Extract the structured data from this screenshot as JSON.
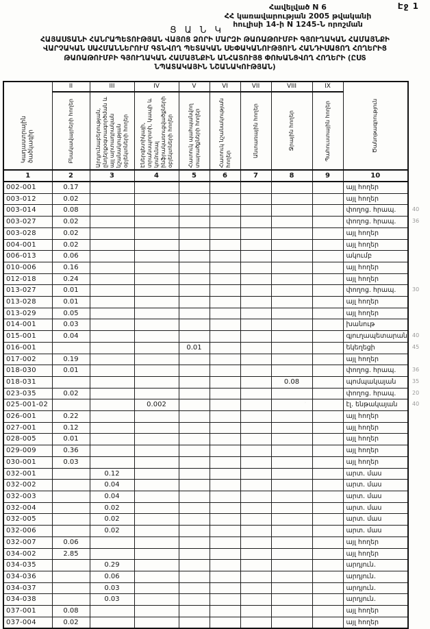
{
  "page": {
    "page_label": "Էջ 1",
    "appendix_line1": "Հավելված N 6",
    "appendix_line2": "ՀՀ կառավարության 2005 թվականի",
    "appendix_line3": "հուլիսի 14-ի N 1245-Ն որոշման",
    "doc_type": "Ց Ա Ն Կ",
    "title_line1": "ՀԱՅԱՍՏԱՆԻ ՀԱՆՐԱՊԵՏՈՒԹՅԱՆ ՎԱՅՈՑ ՁՈՐԻ ՄԱՐԶԻ ԹԱՌԱԹՈՒՄԲԻ ԳՅՈՒՂԱԿԱՆ ՀԱՄԱՅՆՔԻ",
    "title_line2": "ՎԱՐՉԱԿԱՆ ՍԱՀՄԱՆՆԵՐՈՒՄ ԳՏՆՎՈՂ ՊԵՏԱԿԱՆ ՍԵՓԱԿԱՆՈՒԹՅՈՒՆ ՀԱՆԴԻՍԱՑՈՂ ՀՈՂԵՐԻՑ",
    "title_line3": "ԹԱՌԱԹՈՒՄԲԻ ԳՅՈՒՂԱԿԱՆ ՀԱՄԱՅՆՔԻՆ ԱՆՀԱՏՈՒՅՑ ՓՈԽԱՆՑՎՈՂ ՀՈՂԵՐԻ (ԸՍՏ",
    "title_line4": "ՆՊԱՏԱԿԱՅԻՆ ՆՇԱՆԱԿՈՒԹՅԱՆ)"
  },
  "table": {
    "roman_numerals": [
      "II",
      "III",
      "IV",
      "V",
      "VI",
      "VII",
      "VIII",
      "IX"
    ],
    "column_labels": [
      "Կադաստրային ծածկագիր",
      "Բնակավայրերի հողեր",
      "Արդյունաբերության, ընդերքօգտագործման և այլ արտադրական նշանակության օբյեկտների հողեր",
      "Էներգետիկայի, տրանսպորտի, կապի և կոմունալ ինֆրակառուցվածքների օբյեկտների հողեր",
      "Հատուկ պահպանվող տարածքների հողեր",
      "Հատուկ նշանակության հողեր",
      "Անտառային հողեր",
      "Ջրային հողեր",
      "Պահուստային հողեր",
      "Ծանոթագրություն"
    ],
    "column_numbers": [
      "1",
      "2",
      "3",
      "4",
      "5",
      "6",
      "7",
      "8",
      "9",
      "10"
    ],
    "rows": [
      {
        "code": "002-001",
        "values": [
          "0.17",
          "",
          "",
          "",
          "",
          "",
          "",
          ""
        ],
        "note": "այլ հողեր",
        "margin": ""
      },
      {
        "code": "003-012",
        "values": [
          "0.02",
          "",
          "",
          "",
          "",
          "",
          "",
          ""
        ],
        "note": "այլ հողեր",
        "margin": ""
      },
      {
        "code": "003-014",
        "values": [
          "0.08",
          "",
          "",
          "",
          "",
          "",
          "",
          ""
        ],
        "note": "փողոց. հրապ.",
        "margin": "40"
      },
      {
        "code": "003-027",
        "values": [
          "0.02",
          "",
          "",
          "",
          "",
          "",
          "",
          ""
        ],
        "note": "փողոց. հրապ.",
        "margin": "36"
      },
      {
        "code": "003-028",
        "values": [
          "0.02",
          "",
          "",
          "",
          "",
          "",
          "",
          ""
        ],
        "note": "այլ հողեր",
        "margin": ""
      },
      {
        "code": "004-001",
        "values": [
          "0.02",
          "",
          "",
          "",
          "",
          "",
          "",
          ""
        ],
        "note": "այլ հողեր",
        "margin": ""
      },
      {
        "code": "006-013",
        "values": [
          "0.06",
          "",
          "",
          "",
          "",
          "",
          "",
          ""
        ],
        "note": "ակումբ",
        "margin": ""
      },
      {
        "code": "010-006",
        "values": [
          "0.16",
          "",
          "",
          "",
          "",
          "",
          "",
          ""
        ],
        "note": "այլ հողեր",
        "margin": ""
      },
      {
        "code": "012-018",
        "values": [
          "0.24",
          "",
          "",
          "",
          "",
          "",
          "",
          ""
        ],
        "note": "այլ հողեր",
        "margin": ""
      },
      {
        "code": "013-027",
        "values": [
          "0.01",
          "",
          "",
          "",
          "",
          "",
          "",
          ""
        ],
        "note": "փողոց. հրապ.",
        "margin": "30"
      },
      {
        "code": "013-028",
        "values": [
          "0.01",
          "",
          "",
          "",
          "",
          "",
          "",
          ""
        ],
        "note": "այլ հողեր",
        "margin": ""
      },
      {
        "code": "013-029",
        "values": [
          "0.05",
          "",
          "",
          "",
          "",
          "",
          "",
          ""
        ],
        "note": "այլ հողեր",
        "margin": ""
      },
      {
        "code": "014-001",
        "values": [
          "0.03",
          "",
          "",
          "",
          "",
          "",
          "",
          ""
        ],
        "note": "խանութ",
        "margin": ""
      },
      {
        "code": "015-001",
        "values": [
          "0.04",
          "",
          "",
          "",
          "",
          "",
          "",
          ""
        ],
        "note": "գյուղապետարան",
        "margin": "40"
      },
      {
        "code": "016-001",
        "values": [
          "",
          "",
          "",
          "0.01",
          "",
          "",
          "",
          ""
        ],
        "note": "եկեղեցի",
        "margin": "45"
      },
      {
        "code": "017-002",
        "values": [
          "0.19",
          "",
          "",
          "",
          "",
          "",
          "",
          ""
        ],
        "note": "այլ հողեր",
        "margin": ""
      },
      {
        "code": "018-030",
        "values": [
          "0.01",
          "",
          "",
          "",
          "",
          "",
          "",
          ""
        ],
        "note": "փողոց. հրապ.",
        "margin": "36"
      },
      {
        "code": "018-031",
        "values": [
          "",
          "",
          "",
          "",
          "",
          "",
          "0.08",
          ""
        ],
        "note": "պոմպակայան",
        "margin": "35"
      },
      {
        "code": "023-035",
        "values": [
          "0.02",
          "",
          "",
          "",
          "",
          "",
          "",
          ""
        ],
        "note": "փողոց. հրապ.",
        "margin": "20"
      },
      {
        "code": "025-001-02",
        "values": [
          "",
          "",
          "0.002",
          "",
          "",
          "",
          "",
          ""
        ],
        "note": "էլ. ենթակայան",
        "margin": "40"
      },
      {
        "code": "026-001",
        "values": [
          "0.22",
          "",
          "",
          "",
          "",
          "",
          "",
          ""
        ],
        "note": "այլ հողեր",
        "margin": ""
      },
      {
        "code": "027-001",
        "values": [
          "0.12",
          "",
          "",
          "",
          "",
          "",
          "",
          ""
        ],
        "note": "այլ հողեր",
        "margin": ""
      },
      {
        "code": "028-005",
        "values": [
          "0.01",
          "",
          "",
          "",
          "",
          "",
          "",
          ""
        ],
        "note": "այլ հողեր",
        "margin": ""
      },
      {
        "code": "029-009",
        "values": [
          "0.36",
          "",
          "",
          "",
          "",
          "",
          "",
          ""
        ],
        "note": "այլ հողեր",
        "margin": ""
      },
      {
        "code": "030-001",
        "values": [
          "0.03",
          "",
          "",
          "",
          "",
          "",
          "",
          ""
        ],
        "note": "այլ հողեր",
        "margin": ""
      },
      {
        "code": "032-001",
        "values": [
          "",
          "0.12",
          "",
          "",
          "",
          "",
          "",
          ""
        ],
        "note": "արտ. մաս",
        "margin": ""
      },
      {
        "code": "032-002",
        "values": [
          "",
          "0.04",
          "",
          "",
          "",
          "",
          "",
          ""
        ],
        "note": "արտ. մաս",
        "margin": ""
      },
      {
        "code": "032-003",
        "values": [
          "",
          "0.04",
          "",
          "",
          "",
          "",
          "",
          ""
        ],
        "note": "արտ. մաս",
        "margin": ""
      },
      {
        "code": "032-004",
        "values": [
          "",
          "0.02",
          "",
          "",
          "",
          "",
          "",
          ""
        ],
        "note": "արտ. մաս",
        "margin": ""
      },
      {
        "code": "032-005",
        "values": [
          "",
          "0.02",
          "",
          "",
          "",
          "",
          "",
          ""
        ],
        "note": "արտ. մաս",
        "margin": ""
      },
      {
        "code": "032-006",
        "values": [
          "",
          "0.02",
          "",
          "",
          "",
          "",
          "",
          ""
        ],
        "note": "արտ. մաս",
        "margin": ""
      },
      {
        "code": "032-007",
        "values": [
          "0.06",
          "",
          "",
          "",
          "",
          "",
          "",
          ""
        ],
        "note": "այլ հողեր",
        "margin": ""
      },
      {
        "code": "034-002",
        "values": [
          "2.85",
          "",
          "",
          "",
          "",
          "",
          "",
          ""
        ],
        "note": "այլ հողեր",
        "margin": ""
      },
      {
        "code": "034-035",
        "values": [
          "",
          "0.29",
          "",
          "",
          "",
          "",
          "",
          ""
        ],
        "note": "արդյուն.",
        "margin": ""
      },
      {
        "code": "034-036",
        "values": [
          "",
          "0.06",
          "",
          "",
          "",
          "",
          "",
          ""
        ],
        "note": "արդյուն.",
        "margin": ""
      },
      {
        "code": "034-037",
        "values": [
          "",
          "0.03",
          "",
          "",
          "",
          "",
          "",
          ""
        ],
        "note": "արդյուն.",
        "margin": ""
      },
      {
        "code": "034-038",
        "values": [
          "",
          "0.03",
          "",
          "",
          "",
          "",
          "",
          ""
        ],
        "note": "արդյուն.",
        "margin": ""
      },
      {
        "code": "037-001",
        "values": [
          "0.08",
          "",
          "",
          "",
          "",
          "",
          "",
          ""
        ],
        "note": "այլ հողեր",
        "margin": ""
      },
      {
        "code": "037-004",
        "values": [
          "0.02",
          "",
          "",
          "",
          "",
          "",
          "",
          ""
        ],
        "note": "այլ հողեր",
        "margin": ""
      }
    ]
  }
}
